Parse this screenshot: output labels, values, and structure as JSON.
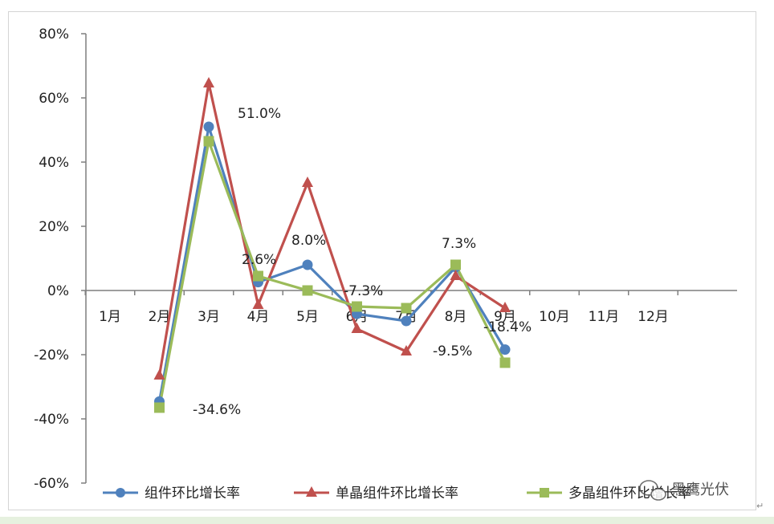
{
  "chart_data": {
    "type": "line",
    "title": "",
    "xlabel": "",
    "ylabel": "",
    "categories": [
      "1月",
      "2月",
      "3月",
      "4月",
      "5月",
      "6月",
      "7月",
      "8月",
      "9月",
      "10月",
      "11月",
      "12月"
    ],
    "y_ticks": [
      "80%",
      "60%",
      "40%",
      "20%",
      "0%",
      "-20%",
      "-40%",
      "-60%"
    ],
    "ylim": [
      -60,
      80
    ],
    "grid": false,
    "legend_position": "bottom",
    "series": [
      {
        "name": "组件环比增长率",
        "color": "#4f81bd",
        "marker": "circle",
        "values": [
          null,
          -34.6,
          51.0,
          2.6,
          8.0,
          -7.3,
          -9.5,
          7.3,
          -18.4,
          null,
          null,
          null
        ]
      },
      {
        "name": "单晶组件环比增长率",
        "color": "#c0504d",
        "marker": "triangle",
        "values": [
          null,
          -26.5,
          64.5,
          -4.5,
          33.5,
          -12.0,
          -19.0,
          4.5,
          -5.5,
          null,
          null,
          null
        ]
      },
      {
        "name": "多晶组件环比增长率",
        "color": "#9bbb59",
        "marker": "square",
        "values": [
          null,
          -36.5,
          46.5,
          4.5,
          0.0,
          -5.0,
          -5.5,
          8.0,
          -22.5,
          null,
          null,
          null
        ]
      }
    ],
    "annotations": [
      "51.0%",
      "2.6%",
      "8.0%",
      "-7.3%",
      "-9.5%",
      "7.3%",
      "-18.4%",
      "-34.6%"
    ]
  },
  "watermark": {
    "text": "黑鹰光伏",
    "icon": "wechat-icon"
  }
}
